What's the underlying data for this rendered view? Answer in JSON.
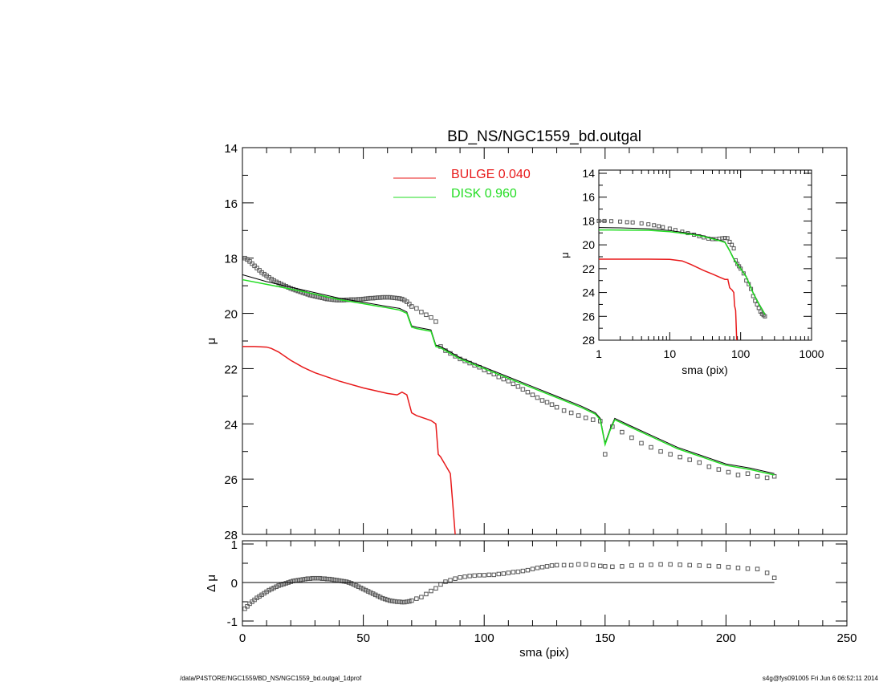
{
  "chart_data": [
    {
      "type": "scatter",
      "panel": "main",
      "title": "BD_NS/NGC1559_bd.outgal",
      "xlabel": "",
      "ylabel": "μ",
      "xlim": [
        0,
        250
      ],
      "ylim": [
        28,
        14
      ],
      "yticks": [
        "14",
        "16",
        "18",
        "20",
        "22",
        "24",
        "26",
        "28"
      ],
      "legend": {
        "placement": "top-center",
        "entries": [
          {
            "label": "BULGE  0.040",
            "color": "#e8191a"
          },
          {
            "label": "DISK  0.960",
            "color": "#22dd22"
          }
        ]
      },
      "series": [
        {
          "kind": "points",
          "color": "#555555",
          "x": [
            1,
            2,
            3,
            4,
            5,
            6,
            7,
            8,
            9,
            10,
            11,
            12,
            13,
            14,
            15,
            16,
            17,
            18,
            19,
            20,
            21,
            22,
            23,
            24,
            25,
            26,
            27,
            28,
            29,
            30,
            31,
            32,
            33,
            34,
            35,
            36,
            37,
            38,
            39,
            40,
            41,
            42,
            43,
            44,
            45,
            46,
            47,
            48,
            49,
            50,
            51,
            52,
            53,
            54,
            55,
            56,
            57,
            58,
            59,
            60,
            61,
            62,
            63,
            64,
            65,
            66,
            67,
            68,
            69,
            70,
            72,
            74,
            76,
            78,
            80,
            82,
            84,
            86,
            88,
            90,
            92,
            94,
            96,
            98,
            100,
            102,
            104,
            106,
            108,
            110,
            112,
            114,
            116,
            118,
            120,
            122,
            124,
            126,
            128,
            130,
            133,
            136,
            139,
            142,
            145,
            148,
            150,
            153,
            157,
            161,
            165,
            169,
            173,
            177,
            181,
            185,
            189,
            193,
            197,
            201,
            205,
            209,
            213,
            217,
            220
          ],
          "y": [
            18.0,
            18.05,
            18.12,
            18.2,
            18.28,
            18.36,
            18.44,
            18.52,
            18.58,
            18.64,
            18.7,
            18.76,
            18.81,
            18.86,
            18.9,
            18.94,
            18.98,
            19.02,
            19.06,
            19.1,
            19.13,
            19.16,
            19.19,
            19.22,
            19.25,
            19.28,
            19.31,
            19.34,
            19.36,
            19.38,
            19.4,
            19.42,
            19.44,
            19.46,
            19.48,
            19.49,
            19.5,
            19.51,
            19.52,
            19.52,
            19.52,
            19.52,
            19.51,
            19.51,
            19.5,
            19.5,
            19.5,
            19.49,
            19.49,
            19.48,
            19.47,
            19.46,
            19.45,
            19.45,
            19.44,
            19.43,
            19.43,
            19.42,
            19.42,
            19.42,
            19.42,
            19.43,
            19.44,
            19.45,
            19.46,
            19.48,
            19.52,
            19.58,
            19.66,
            19.75,
            19.82,
            19.95,
            20.05,
            20.15,
            20.3,
            21.2,
            21.35,
            21.45,
            21.55,
            21.65,
            21.72,
            21.8,
            21.88,
            21.95,
            22.05,
            22.12,
            22.2,
            22.3,
            22.38,
            22.45,
            22.55,
            22.65,
            22.75,
            22.85,
            22.95,
            23.05,
            23.15,
            23.22,
            23.3,
            23.4,
            23.52,
            23.6,
            23.7,
            23.78,
            23.85,
            23.9,
            25.1,
            24.1,
            24.3,
            24.5,
            24.7,
            24.85,
            25.0,
            25.1,
            25.2,
            25.3,
            25.4,
            25.55,
            25.65,
            25.75,
            25.85,
            25.8,
            25.9,
            25.95,
            25.9
          ]
        },
        {
          "kind": "line",
          "name": "total",
          "color": "#000000",
          "x": [
            0,
            10,
            20,
            30,
            40,
            50,
            60,
            65,
            68,
            70,
            72,
            78,
            80,
            82,
            90,
            100,
            110,
            120,
            130,
            140,
            146,
            148,
            150,
            152,
            154,
            160,
            170,
            180,
            190,
            200,
            210,
            220
          ],
          "y": [
            18.6,
            18.85,
            19.05,
            19.25,
            19.45,
            19.6,
            19.75,
            19.82,
            19.95,
            20.45,
            20.5,
            20.6,
            21.15,
            21.2,
            21.6,
            21.95,
            22.3,
            22.65,
            23.0,
            23.35,
            23.6,
            23.8,
            24.7,
            24.2,
            23.8,
            24.05,
            24.45,
            24.85,
            25.15,
            25.45,
            25.6,
            25.8
          ]
        },
        {
          "kind": "line",
          "name": "DISK  0.960",
          "color": "#22dd22",
          "x": [
            0,
            10,
            20,
            30,
            40,
            50,
            60,
            65,
            68,
            70,
            72,
            78,
            80,
            82,
            90,
            100,
            110,
            120,
            130,
            140,
            146,
            148,
            150,
            152,
            154,
            160,
            170,
            180,
            190,
            200,
            210,
            220
          ],
          "y": [
            18.78,
            18.95,
            19.12,
            19.3,
            19.5,
            19.65,
            19.8,
            19.88,
            20.0,
            20.5,
            20.55,
            20.65,
            21.2,
            21.25,
            21.65,
            22.0,
            22.35,
            22.7,
            23.05,
            23.4,
            23.65,
            23.85,
            24.75,
            24.25,
            23.85,
            24.1,
            24.5,
            24.9,
            25.2,
            25.5,
            25.65,
            25.85
          ]
        },
        {
          "kind": "line",
          "name": "BULGE  0.040",
          "color": "#e8191a",
          "x": [
            0,
            5,
            10,
            12,
            15,
            20,
            25,
            30,
            40,
            50,
            60,
            64,
            66,
            68,
            70,
            72,
            76,
            78,
            80,
            81,
            82,
            84,
            86,
            88
          ],
          "y": [
            21.2,
            21.2,
            21.22,
            21.27,
            21.4,
            21.7,
            21.95,
            22.15,
            22.45,
            22.7,
            22.9,
            22.95,
            22.85,
            22.95,
            23.6,
            23.7,
            23.82,
            23.88,
            24.0,
            25.1,
            25.2,
            25.5,
            25.8,
            28.0
          ]
        }
      ]
    },
    {
      "type": "scatter",
      "panel": "residual",
      "xlabel": "sma (pix)",
      "ylabel": "Δ μ",
      "xlim": [
        0,
        250
      ],
      "ylim": [
        -1,
        1
      ],
      "xticks": [
        "0",
        "50",
        "100",
        "150",
        "200",
        "250"
      ],
      "yticks": [
        "-1",
        "0",
        "1"
      ],
      "series": [
        {
          "kind": "points",
          "color": "#555555",
          "x": [
            1,
            2,
            3,
            4,
            5,
            6,
            7,
            8,
            9,
            10,
            11,
            12,
            13,
            14,
            15,
            16,
            17,
            18,
            19,
            20,
            21,
            22,
            23,
            24,
            25,
            26,
            27,
            28,
            29,
            30,
            31,
            32,
            33,
            34,
            35,
            36,
            37,
            38,
            39,
            40,
            41,
            42,
            43,
            44,
            45,
            46,
            47,
            48,
            49,
            50,
            51,
            52,
            53,
            54,
            55,
            56,
            57,
            58,
            59,
            60,
            61,
            62,
            63,
            64,
            65,
            66,
            67,
            68,
            69,
            70,
            72,
            74,
            76,
            78,
            80,
            82,
            84,
            86,
            88,
            90,
            92,
            94,
            96,
            98,
            100,
            102,
            104,
            106,
            108,
            110,
            112,
            114,
            116,
            118,
            120,
            122,
            124,
            126,
            128,
            130,
            133,
            136,
            139,
            142,
            145,
            148,
            150,
            153,
            157,
            161,
            165,
            169,
            173,
            177,
            181,
            185,
            189,
            193,
            197,
            201,
            205,
            209,
            213,
            217,
            220
          ],
          "y": [
            -0.68,
            -0.62,
            -0.55,
            -0.5,
            -0.45,
            -0.4,
            -0.36,
            -0.32,
            -0.28,
            -0.24,
            -0.2,
            -0.17,
            -0.14,
            -0.11,
            -0.08,
            -0.06,
            -0.04,
            -0.02,
            0.0,
            0.02,
            0.04,
            0.05,
            0.06,
            0.07,
            0.08,
            0.09,
            0.1,
            0.1,
            0.11,
            0.11,
            0.11,
            0.11,
            0.1,
            0.1,
            0.09,
            0.09,
            0.08,
            0.07,
            0.06,
            0.05,
            0.04,
            0.03,
            0.02,
            0.0,
            -0.02,
            -0.05,
            -0.08,
            -0.11,
            -0.14,
            -0.17,
            -0.2,
            -0.23,
            -0.26,
            -0.29,
            -0.32,
            -0.35,
            -0.38,
            -0.41,
            -0.43,
            -0.45,
            -0.47,
            -0.48,
            -0.49,
            -0.5,
            -0.5,
            -0.51,
            -0.51,
            -0.5,
            -0.49,
            -0.47,
            -0.42,
            -0.38,
            -0.3,
            -0.22,
            -0.15,
            -0.05,
            0.02,
            0.06,
            0.1,
            0.13,
            0.15,
            0.17,
            0.18,
            0.19,
            0.19,
            0.2,
            0.2,
            0.22,
            0.23,
            0.25,
            0.27,
            0.28,
            0.3,
            0.32,
            0.35,
            0.38,
            0.4,
            0.42,
            0.44,
            0.45,
            0.45,
            0.45,
            0.47,
            0.47,
            0.45,
            0.43,
            0.42,
            0.41,
            0.42,
            0.44,
            0.45,
            0.46,
            0.47,
            0.47,
            0.46,
            0.45,
            0.44,
            0.43,
            0.42,
            0.4,
            0.38,
            0.36,
            0.35,
            0.25,
            0.12
          ]
        },
        {
          "kind": "line",
          "name": "zero",
          "color": "#000000",
          "x": [
            0,
            220
          ],
          "y": [
            0,
            0
          ]
        }
      ]
    },
    {
      "type": "scatter",
      "panel": "inset",
      "xscale": "log",
      "xlabel": "sma (pix)",
      "ylabel": "μ",
      "xlim": [
        1,
        1000
      ],
      "ylim": [
        28,
        14
      ],
      "xticks": [
        "1",
        "10",
        "100",
        "1000"
      ],
      "yticks": [
        "14",
        "16",
        "18",
        "20",
        "22",
        "24",
        "26",
        "28"
      ],
      "series": [
        {
          "kind": "points",
          "color": "#555555",
          "x": [
            1,
            1.2,
            1.5,
            2,
            2.5,
            3,
            4,
            5,
            6,
            7,
            8,
            10,
            12,
            15,
            18,
            22,
            26,
            30,
            35,
            40,
            45,
            50,
            55,
            60,
            65,
            70,
            75,
            80,
            85,
            90,
            95,
            100,
            110,
            120,
            130,
            140,
            150,
            160,
            170,
            180,
            190,
            200,
            210,
            220
          ],
          "y": [
            18.0,
            18.0,
            18.02,
            18.05,
            18.1,
            18.12,
            18.2,
            18.28,
            18.36,
            18.44,
            18.52,
            18.64,
            18.76,
            18.9,
            19.02,
            19.15,
            19.28,
            19.38,
            19.48,
            19.52,
            19.52,
            19.48,
            19.45,
            19.42,
            19.44,
            19.75,
            20.0,
            20.3,
            21.3,
            21.6,
            21.8,
            22.0,
            22.4,
            23.0,
            23.3,
            23.7,
            24.3,
            24.7,
            25.0,
            25.3,
            25.6,
            25.8,
            25.9,
            26.0
          ]
        },
        {
          "kind": "line",
          "name": "total",
          "color": "#000000",
          "x": [
            1,
            2,
            5,
            10,
            20,
            30,
            40,
            50,
            60,
            70,
            80,
            90,
            100,
            120,
            150,
            180,
            220
          ],
          "y": [
            18.55,
            18.58,
            18.65,
            18.8,
            19.05,
            19.25,
            19.45,
            19.6,
            19.75,
            20.45,
            21.15,
            21.6,
            21.95,
            22.65,
            24.0,
            24.9,
            25.8
          ]
        },
        {
          "kind": "line",
          "name": "DISK  0.960",
          "color": "#22dd22",
          "x": [
            1,
            2,
            5,
            10,
            20,
            30,
            40,
            50,
            60,
            70,
            80,
            90,
            100,
            120,
            150,
            180,
            220
          ],
          "y": [
            18.75,
            18.76,
            18.78,
            18.9,
            19.12,
            19.3,
            19.5,
            19.65,
            19.8,
            20.5,
            21.2,
            21.65,
            22.0,
            22.7,
            24.05,
            24.95,
            25.85
          ]
        },
        {
          "kind": "line",
          "name": "BULGE  0.040",
          "color": "#e8191a",
          "x": [
            1,
            2,
            5,
            10,
            15,
            20,
            30,
            40,
            50,
            60,
            66,
            70,
            76,
            80,
            82,
            85,
            88
          ],
          "y": [
            21.2,
            21.2,
            21.2,
            21.22,
            21.35,
            21.65,
            22.15,
            22.45,
            22.7,
            22.9,
            22.9,
            23.6,
            23.8,
            24.0,
            25.1,
            25.5,
            28.0
          ]
        }
      ]
    }
  ],
  "footer": {
    "left": "/data/P4STORE/NGC1559/BD_NS/NGC1559_bd.outgal_1dprof",
    "right": "s4g@fys091005  Fri Jun  6 06:52:11 2014"
  }
}
